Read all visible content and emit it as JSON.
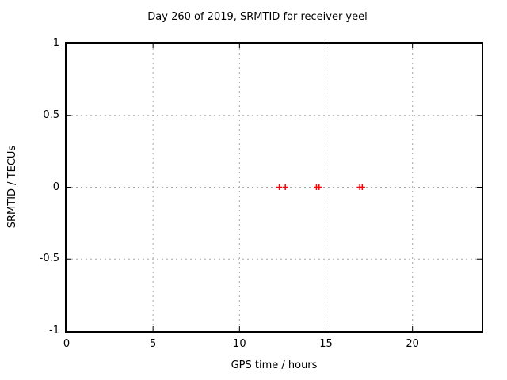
{
  "chart_data": {
    "type": "scatter",
    "title": "Day 260 of 2019, SRMTID for receiver yeel",
    "xlabel": "GPS time / hours",
    "ylabel": "SRMTID / TECUs",
    "xlim": [
      0,
      24
    ],
    "ylim": [
      -1,
      1
    ],
    "x_ticks": [
      0,
      5,
      10,
      15,
      20
    ],
    "y_ticks": [
      -1,
      -0.5,
      0,
      0.5,
      1
    ],
    "grid": true,
    "legend": "none",
    "series": [
      {
        "name": "SRMTID",
        "marker": "plus",
        "color": "#ff0000",
        "points": [
          [
            12.3,
            0
          ],
          [
            12.65,
            0
          ],
          [
            14.45,
            0
          ],
          [
            14.6,
            0
          ],
          [
            16.95,
            0
          ],
          [
            17.1,
            0
          ]
        ]
      }
    ]
  },
  "colors": {
    "background": "#ffffff",
    "border": "#000000",
    "grid": "#a8a8a8",
    "text": "#000000",
    "marker": "#ff0000"
  }
}
